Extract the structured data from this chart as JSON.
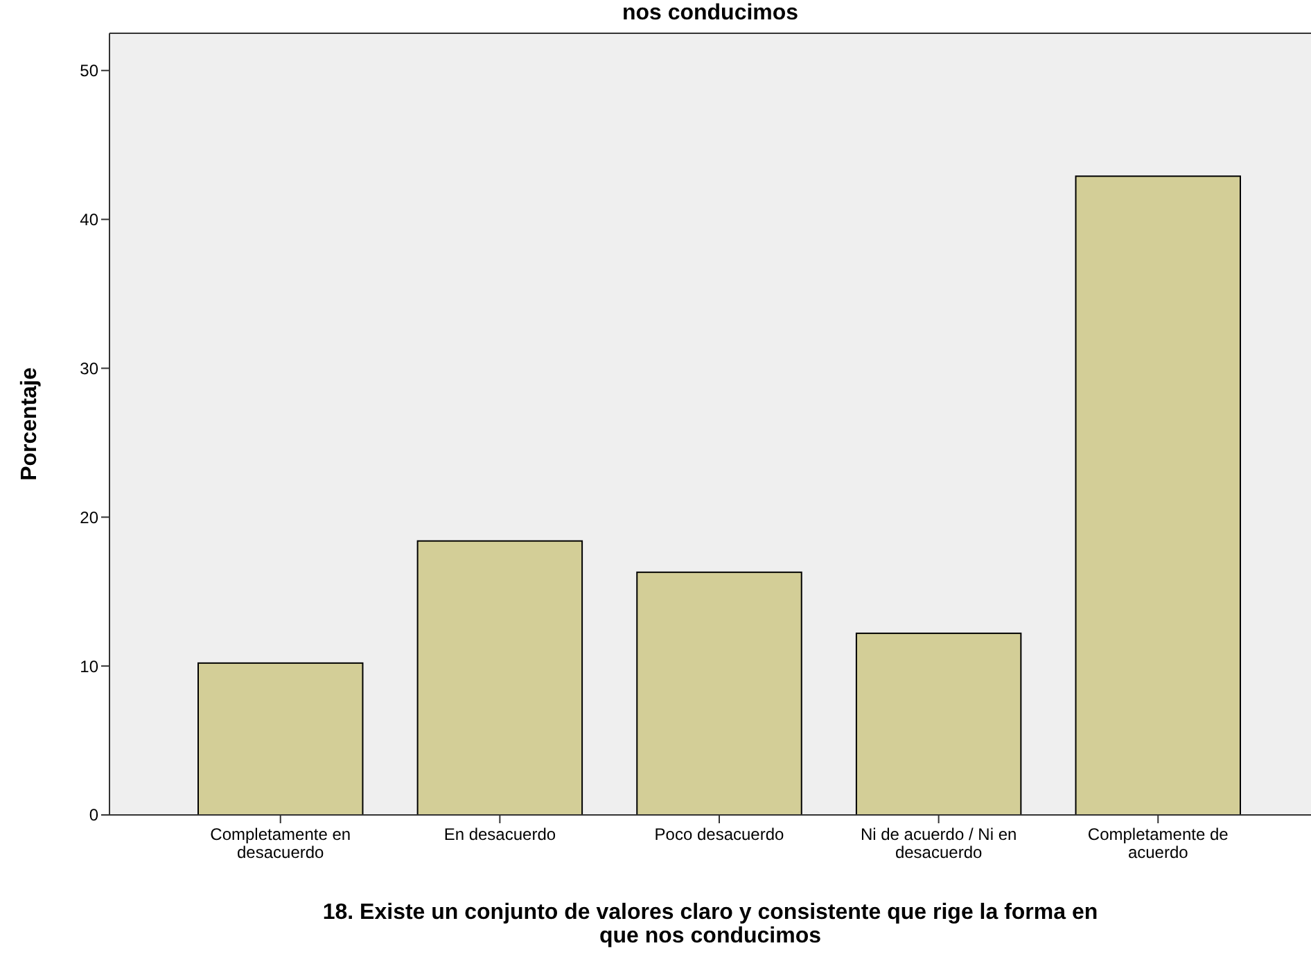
{
  "chart_data": {
    "type": "bar",
    "title": "nos conducimos",
    "categories": [
      "Completamente en desacuerdo",
      "En desacuerdo",
      "Poco desacuerdo",
      "Ni de acuerdo / Ni en desacuerdo",
      "Completamente de acuerdo"
    ],
    "values": [
      10.2,
      18.4,
      16.3,
      12.2,
      42.9
    ],
    "color": "#d3ce97",
    "ylim": [
      0,
      52.5
    ],
    "yticks": [
      0,
      10,
      20,
      30,
      40,
      50
    ],
    "ylabel": "Porcentaje",
    "xlabel": "18. Existe un conjunto de valores claro y consistente que rige la forma en que nos conducimos",
    "grid": false
  }
}
